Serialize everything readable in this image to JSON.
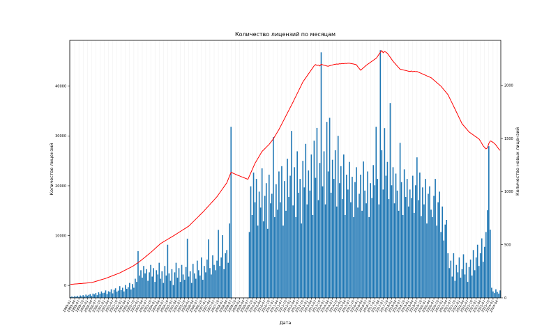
{
  "chart_data": {
    "type": "bar",
    "title": "Количество лицензий по месяцам",
    "xlabel": "Дата",
    "ylabel": "Количество лицензий",
    "ylabel_right": "Количество новых лицензий",
    "grid": true,
    "ylim_left": [
      -2500,
      49200
    ],
    "ylim_right": [
      0,
      2425
    ],
    "yticks_left": [
      0,
      10000,
      20000,
      30000,
      40000
    ],
    "yticks_right": [
      0,
      500,
      1000,
      1500,
      2000
    ],
    "xticks": [
      "1999-01",
      "1999-04",
      "1999-07",
      "1999-10",
      "2000-01",
      "2000-04",
      "2000-07",
      "2000-10",
      "2001-01",
      "2001-04",
      "2001-07",
      "2001-10",
      "2002-01",
      "2002-04",
      "2002-07",
      "2002-10",
      "2003-01",
      "2003-04",
      "2003-07",
      "2003-10",
      "2004-01",
      "2004-04",
      "2004-07",
      "2004-10",
      "2005-01",
      "2005-04",
      "2005-07",
      "2005-10",
      "2006-01",
      "2006-04",
      "2006-07",
      "2006-10",
      "2007-01",
      "2007-04",
      "2007-07",
      "2007-10",
      "2008-01",
      "2008-04",
      "2008-07",
      "2008-10",
      "2009-01",
      "2009-04",
      "2009-07",
      "2009-10",
      "2010-01",
      "2010-04",
      "2010-07",
      "2010-10",
      "2011-01",
      "2011-04",
      "2011-07",
      "2011-10",
      "2012-01",
      "2012-04",
      "2012-07",
      "2012-10",
      "2013-01",
      "2013-04",
      "2013-07",
      "2013-10",
      "2014-01",
      "2014-04",
      "2014-07",
      "2014-10",
      "2015-01",
      "2015-04",
      "2015-07",
      "2015-10",
      "2016-01",
      "2016-04",
      "2016-07",
      "2016-10",
      "2017-01",
      "2017-04",
      "2017-07",
      "2017-10",
      "2018-01",
      "2018-04",
      "2018-07",
      "2018-10",
      "2019-01",
      "2019-04",
      "2019-07",
      "2019-10",
      "2020-01",
      "2020-04",
      "2020-07",
      "2020-10",
      "2021-01",
      "2021-04",
      "2021-07",
      "2021-10",
      "2022-01",
      "2022-04",
      "2022-07",
      "2022-10",
      "2023-01",
      "2023-04",
      "2023-07",
      "2023-10",
      "2024-01",
      "2024-04"
    ],
    "series": [
      {
        "type": "bar",
        "axis": "right",
        "color": "#1f77b4",
        "values": [
          8,
          12,
          6,
          15,
          10,
          18,
          9,
          22,
          14,
          25,
          12,
          30,
          20,
          28,
          35,
          18,
          40,
          32,
          45,
          25,
          52,
          38,
          60,
          44,
          48,
          70,
          35,
          62,
          55,
          80,
          42,
          75,
          90,
          58,
          68,
          110,
          72,
          95,
          60,
          120,
          85,
          100,
          140,
          78,
          130,
          95,
          180,
          150,
          440,
          210,
          260,
          190,
          300,
          230,
          270,
          160,
          240,
          310,
          200,
          280,
          150,
          260,
          220,
          330,
          180,
          250,
          140,
          300,
          210,
          500,
          230,
          160,
          270,
          120,
          240,
          330,
          190,
          280,
          150,
          310,
          220,
          170,
          290,
          557,
          200,
          250,
          140,
          320,
          230,
          180,
          350,
          260,
          210,
          380,
          170,
          300,
          240,
          360,
          550,
          280,
          220,
          400,
          310,
          260,
          350,
          640,
          300,
          380,
          590,
          270,
          420,
          450,
          330,
          700,
          1611,
          0,
          0,
          0,
          0,
          0,
          0,
          0,
          0,
          0,
          0,
          0,
          0,
          620,
          1050,
          780,
          1180,
          900,
          1120,
          680,
          1000,
          850,
          1220,
          720,
          960,
          1080,
          650,
          1160,
          890,
          980,
          1513,
          760,
          1070,
          830,
          1190,
          900,
          1240,
          680,
          1100,
          820,
          1310,
          950,
          1150,
          1572,
          870,
          1230,
          760,
          1380,
          990,
          1120,
          700,
          1290,
          1040,
          1450,
          880,
          1200,
          1010,
          1350,
          780,
          1480,
          1130,
          1600,
          920,
          1270,
          2312,
          1050,
          1380,
          880,
          1657,
          1190,
          1696,
          990,
          1300,
          1120,
          1390,
          860,
          1526,
          1080,
          1240,
          930,
          1350,
          780,
          1160,
          1020,
          1280,
          900,
          1140,
          760,
          1090,
          1230,
          850,
          980,
          1160,
          820,
          1284,
          1010,
          890,
          1190,
          760,
          1080,
          940,
          1250,
          1060,
          1611,
          1120,
          880,
          2332,
          1390,
          1020,
          1598,
          1150,
          1280,
          930,
          1834,
          1060,
          1230,
          890,
          1170,
          1010,
          820,
          1460,
          1090,
          780,
          1210,
          950,
          1120,
          860,
          1020,
          940,
          1150,
          800,
          1060,
          1323,
          920,
          1180,
          770,
          1040,
          880,
          1120,
          700,
          980,
          1050,
          830,
          760,
          960,
          1120,
          680,
          900,
          1000,
          620,
          860,
          540,
          690,
          734,
          420,
          280,
          350,
          200,
          420,
          160,
          310,
          240,
          380,
          190,
          270,
          410,
          220,
          330,
          150,
          290,
          360,
          210,
          450,
          260,
          380,
          500,
          300,
          420,
          560,
          340,
          480,
          620,
          825,
          1428,
          642,
          95,
          60,
          45,
          80,
          55,
          40,
          70
        ]
      },
      {
        "type": "line",
        "axis": "left",
        "color": "#ff0000",
        "values": [
          200,
          220,
          245,
          270,
          290,
          315,
          340,
          365,
          390,
          410,
          435,
          460,
          485,
          510,
          535,
          560,
          640,
          720,
          805,
          890,
          975,
          1060,
          1145,
          1230,
          1315,
          1400,
          1510,
          1620,
          1730,
          1840,
          1950,
          2060,
          2170,
          2280,
          2390,
          2500,
          2645,
          2790,
          2935,
          3080,
          3225,
          3370,
          3515,
          3660,
          3800,
          3990,
          4185,
          4375,
          4570,
          4760,
          4990,
          5220,
          5450,
          5680,
          5910,
          6140,
          6370,
          6600,
          6860,
          7115,
          7370,
          7630,
          7885,
          8140,
          8400,
          8570,
          8740,
          8910,
          9080,
          9250,
          9420,
          9590,
          9760,
          9930,
          10100,
          10280,
          10460,
          10640,
          10820,
          11000,
          11180,
          11360,
          11540,
          11720,
          11900,
          12180,
          12460,
          12740,
          13020,
          13300,
          13580,
          13860,
          14140,
          14420,
          14700,
          15010,
          15320,
          15630,
          15940,
          16250,
          16560,
          16870,
          17180,
          17490,
          17800,
          18200,
          18600,
          19000,
          19400,
          19800,
          20200,
          20600,
          21300,
          22000,
          22700,
          22580,
          22450,
          22330,
          22200,
          22090,
          21975,
          21860,
          21750,
          21640,
          21525,
          21410,
          21300,
          21940,
          22580,
          23220,
          23860,
          24500,
          24980,
          25460,
          25940,
          26420,
          26900,
          27180,
          27460,
          27740,
          28020,
          28300,
          28670,
          29030,
          29400,
          29875,
          30350,
          30825,
          31300,
          31850,
          32400,
          32950,
          33500,
          34050,
          34600,
          35150,
          35700,
          36250,
          36800,
          37380,
          37960,
          38540,
          39110,
          39690,
          40270,
          40850,
          41260,
          41660,
          42070,
          42480,
          42880,
          43290,
          43690,
          44100,
          44350,
          44150,
          44250,
          44050,
          44400,
          44300,
          44200,
          44150,
          44050,
          44000,
          44100,
          44200,
          44250,
          44350,
          44400,
          44450,
          44420,
          44500,
          44480,
          44550,
          44520,
          44580,
          44560,
          44620,
          44600,
          44550,
          44500,
          44450,
          44380,
          44300,
          43900,
          43550,
          43200,
          43450,
          43700,
          43950,
          44200,
          44400,
          44600,
          44800,
          45000,
          45200,
          45400,
          45600,
          45950,
          46400,
          46800,
          47150,
          46700,
          47000,
          46800,
          46600,
          46200,
          45800,
          45400,
          45000,
          44680,
          44360,
          44040,
          43720,
          43400,
          43350,
          43280,
          43200,
          43150,
          43080,
          43000,
          42950,
          43050,
          42900,
          43000,
          42920,
          42950,
          42820,
          42700,
          42570,
          42450,
          42320,
          42200,
          42070,
          41950,
          41820,
          41700,
          41460,
          41210,
          40970,
          40730,
          40490,
          40240,
          40000,
          39660,
          39320,
          38980,
          38640,
          38300,
          37720,
          37140,
          36560,
          35980,
          35400,
          34810,
          34220,
          33630,
          33040,
          32450,
          32120,
          31790,
          31460,
          31130,
          30800,
          30600,
          30400,
          30200,
          30000,
          29800,
          29600,
          29400,
          29000,
          28500,
          28000,
          27700,
          27400,
          27600,
          28500,
          29000,
          28900,
          28700,
          28500,
          28200,
          27800,
          27400,
          27100
        ]
      }
    ]
  }
}
